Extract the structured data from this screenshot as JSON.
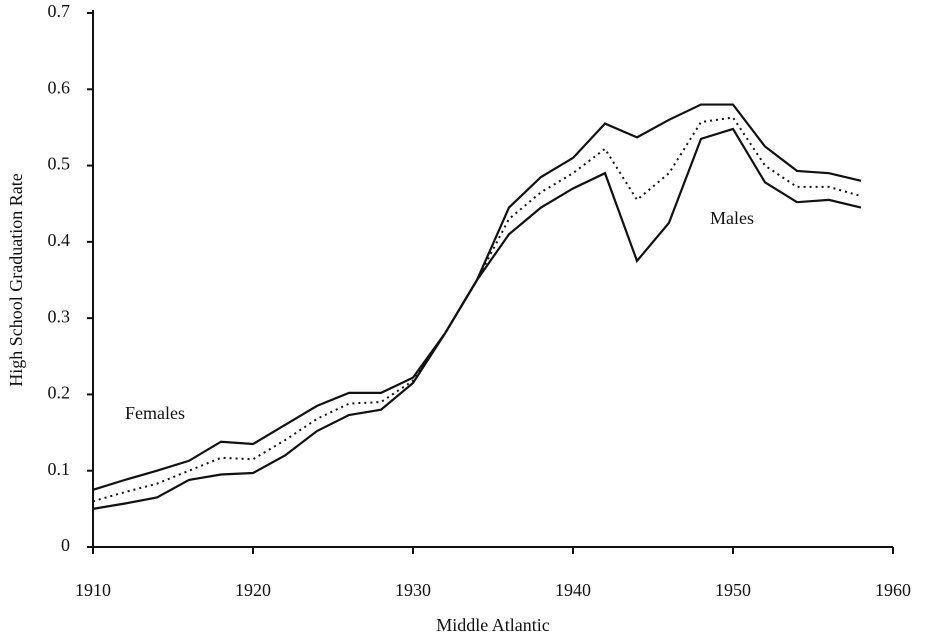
{
  "chart_data": {
    "type": "line",
    "x_label": "Middle Atlantic",
    "y_label": "High School Graduation Rate",
    "annotations": [
      "Females",
      "Males"
    ],
    "x": [
      1910,
      1912,
      1914,
      1916,
      1918,
      1920,
      1922,
      1924,
      1926,
      1928,
      1930,
      1932,
      1934,
      1936,
      1938,
      1940,
      1942,
      1944,
      1946,
      1948,
      1950,
      1952,
      1954,
      1956,
      1958
    ],
    "series": [
      {
        "name": "Females",
        "color": "#111111",
        "linestyle": "solid",
        "values": [
          0.075,
          0.088,
          0.1,
          0.113,
          0.138,
          0.135,
          0.16,
          0.185,
          0.202,
          0.202,
          0.222,
          0.28,
          0.35,
          0.445,
          0.485,
          0.51,
          0.555,
          0.537,
          0.56,
          0.58,
          0.58,
          0.525,
          0.493,
          0.49,
          0.48
        ]
      },
      {
        "color": "#111111",
        "linestyle": "dotted",
        "values": [
          0.06,
          0.072,
          0.083,
          0.1,
          0.117,
          0.115,
          0.14,
          0.168,
          0.188,
          0.19,
          0.218,
          0.28,
          0.35,
          0.43,
          0.465,
          0.49,
          0.522,
          0.455,
          0.49,
          0.557,
          0.563,
          0.5,
          0.472,
          0.472,
          0.46
        ]
      },
      {
        "name": "Males",
        "color": "#111111",
        "linestyle": "solid",
        "values": [
          0.05,
          0.057,
          0.065,
          0.088,
          0.095,
          0.097,
          0.12,
          0.152,
          0.173,
          0.18,
          0.215,
          0.28,
          0.35,
          0.41,
          0.445,
          0.47,
          0.49,
          0.375,
          0.425,
          0.535,
          0.548,
          0.478,
          0.452,
          0.455,
          0.445
        ]
      }
    ],
    "xlim": [
      1910,
      1960
    ],
    "xticks": [
      1910,
      1920,
      1930,
      1940,
      1950,
      1960
    ],
    "ylim": [
      0,
      0.7
    ],
    "yticks": [
      0,
      0.1,
      0.2,
      0.3,
      0.4,
      0.5,
      0.6,
      0.7
    ],
    "grid": false
  }
}
